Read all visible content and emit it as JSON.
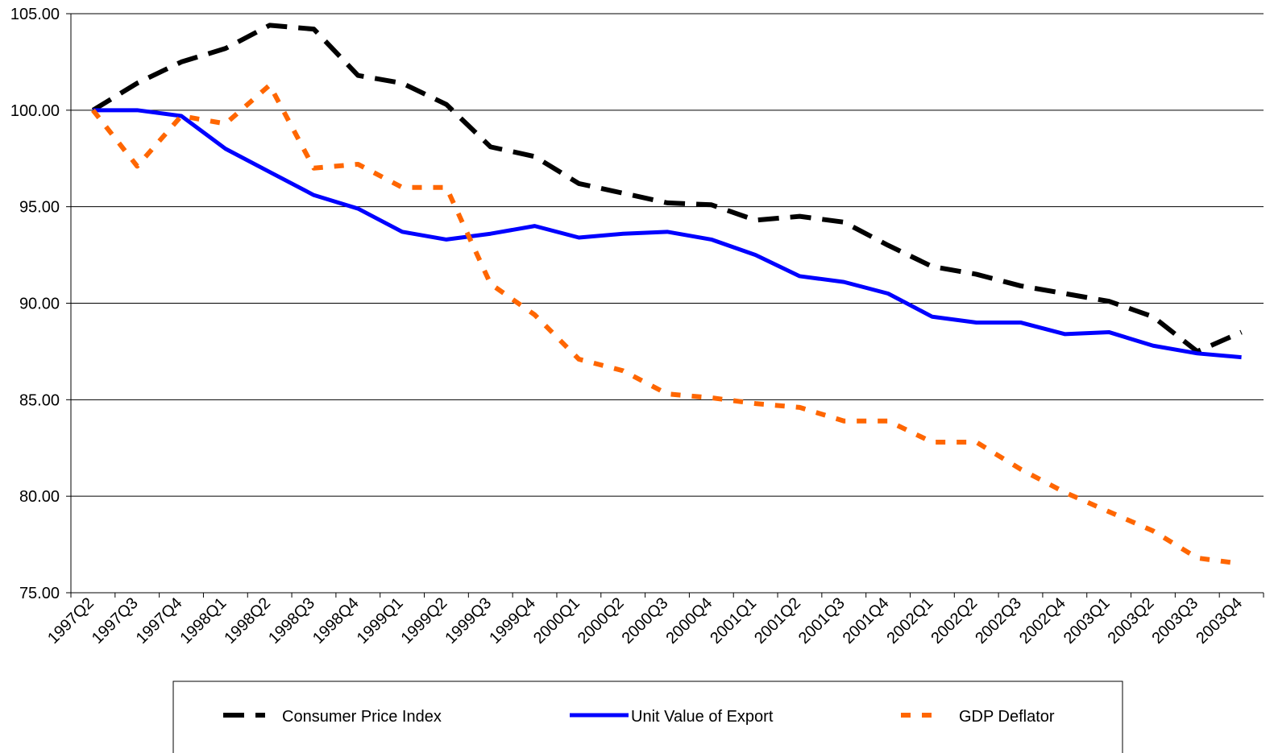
{
  "chart_data": {
    "type": "line",
    "categories": [
      "1997Q2",
      "1997Q3",
      "1997Q4",
      "1998Q1",
      "1998Q2",
      "1998Q3",
      "1998Q4",
      "1999Q1",
      "1999Q2",
      "1999Q3",
      "1999Q4",
      "2000Q1",
      "2000Q2",
      "2000Q3",
      "2000Q4",
      "2001Q1",
      "2001Q2",
      "2001Q3",
      "2001Q4",
      "2002Q1",
      "2002Q2",
      "2002Q3",
      "2002Q4",
      "2003Q1",
      "2003Q2",
      "2003Q3",
      "2003Q4"
    ],
    "series": [
      {
        "name": "Consumer Price Index",
        "color": "#000000",
        "line_style": "dashed",
        "values": [
          100,
          101.4,
          102.5,
          103.2,
          104.4,
          104.2,
          101.8,
          101.4,
          100.3,
          98.1,
          97.6,
          96.2,
          95.7,
          95.2,
          95.1,
          94.3,
          94.5,
          94.2,
          93.0,
          91.9,
          91.5,
          90.9,
          90.5,
          90.1,
          89.3,
          87.5,
          88.5
        ]
      },
      {
        "name": "Unit Value of Export",
        "color": "#0000ff",
        "line_style": "solid",
        "values": [
          100,
          100,
          99.7,
          98.0,
          96.8,
          95.6,
          94.9,
          93.7,
          93.3,
          93.6,
          94.0,
          93.4,
          93.6,
          93.7,
          93.3,
          92.5,
          91.4,
          91.1,
          90.5,
          89.3,
          89.0,
          89.0,
          88.4,
          88.5,
          87.8,
          87.4,
          87.2
        ]
      },
      {
        "name": "GDP Deflator",
        "color": "#ff6600",
        "line_style": "dotted",
        "values": [
          100,
          97.1,
          99.7,
          99.3,
          101.3,
          97.0,
          97.2,
          96.0,
          96.0,
          91.0,
          89.4,
          87.1,
          86.5,
          85.3,
          85.1,
          84.8,
          84.6,
          83.9,
          83.9,
          82.8,
          82.8,
          81.4,
          80.2,
          79.2,
          78.2,
          76.8,
          76.5
        ]
      }
    ],
    "ylim": [
      75,
      105
    ],
    "yticks": [
      {
        "value": 75,
        "label": "75.00"
      },
      {
        "value": 80,
        "label": "80.00"
      },
      {
        "value": 85,
        "label": "85.00"
      },
      {
        "value": 90,
        "label": "90.00"
      },
      {
        "value": 95,
        "label": "95.00"
      },
      {
        "value": 100,
        "label": "100.00"
      },
      {
        "value": 105,
        "label": "105.00"
      }
    ],
    "grid": true,
    "legend": "bottom"
  }
}
